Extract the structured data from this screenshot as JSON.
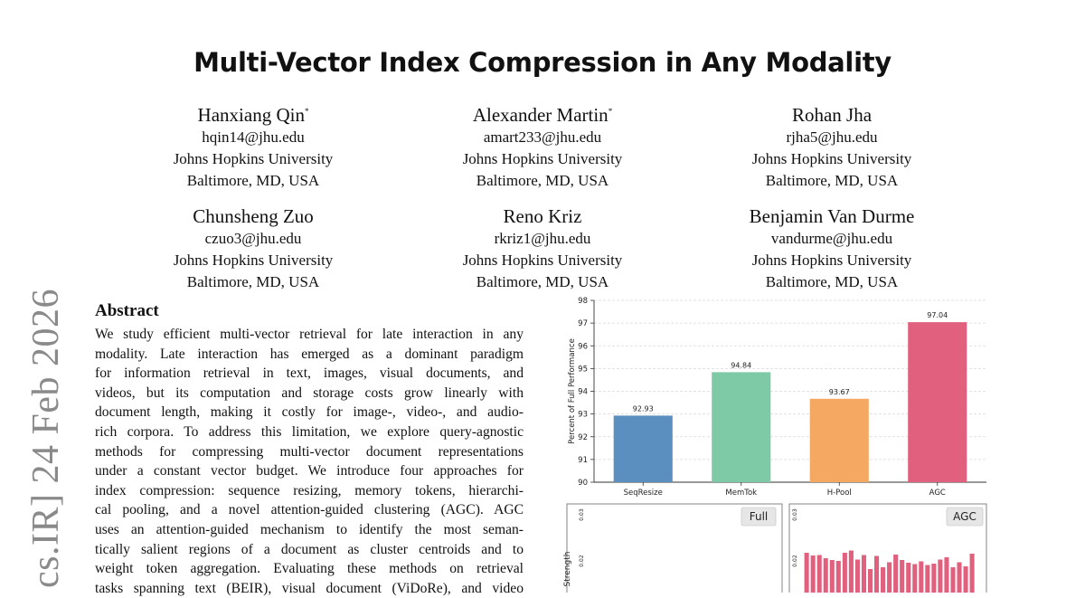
{
  "sidebar": {
    "stamp": "cs.IR]  24 Feb 2026"
  },
  "paper": {
    "title": "Multi-Vector Index Compression in Any Modality"
  },
  "authors": [
    {
      "name": "Hanxiang Qin",
      "mark": "*",
      "email": "hqin14@jhu.edu",
      "affiliation": "Johns Hopkins University",
      "location": "Baltimore, MD, USA"
    },
    {
      "name": "Alexander Martin",
      "mark": "*",
      "email": "amart233@jhu.edu",
      "affiliation": "Johns Hopkins University",
      "location": "Baltimore, MD, USA"
    },
    {
      "name": "Rohan Jha",
      "mark": "",
      "email": "rjha5@jhu.edu",
      "affiliation": "Johns Hopkins University",
      "location": "Baltimore, MD, USA"
    },
    {
      "name": "Chunsheng Zuo",
      "mark": "",
      "email": "czuo3@jhu.edu",
      "affiliation": "Johns Hopkins University",
      "location": "Baltimore, MD, USA"
    },
    {
      "name": "Reno Kriz",
      "mark": "",
      "email": "rkriz1@jhu.edu",
      "affiliation": "Johns Hopkins University",
      "location": "Baltimore, MD, USA"
    },
    {
      "name": "Benjamin Van Durme",
      "mark": "",
      "email": "vandurme@jhu.edu",
      "affiliation": "Johns Hopkins University",
      "location": "Baltimore, MD, USA"
    }
  ],
  "abstract": {
    "heading": "Abstract",
    "lines": [
      "We study efficient multi-vector retrieval for late interaction in any",
      "modality. Late interaction has emerged as a dominant paradigm",
      "for information retrieval in text, images, visual documents, and",
      "videos, but its computation and storage costs grow linearly with",
      "document length, making it costly for image-, video-, and audio-",
      "rich corpora. To address this limitation, we explore query-agnostic",
      "methods for compressing multi-vector document representations",
      "under a constant vector budget. We introduce four approaches for",
      "index compression: sequence resizing, memory tokens, hierarchi-",
      "cal pooling, and a novel attention-guided clustering (AGC). AGC",
      "uses an attention-guided mechanism to identify the most seman-",
      "tically salient regions of a document as cluster centroids and to",
      "weight token aggregation. Evaluating these methods on retrieval",
      "tasks spanning text (BEIR), visual document (ViDoRe), and video"
    ]
  },
  "chart_data": [
    {
      "type": "bar",
      "title": "",
      "xlabel": "",
      "ylabel": "Percent of Full Performance",
      "categories": [
        "SeqResize",
        "MemTok",
        "H-Pool",
        "AGC"
      ],
      "values": [
        92.93,
        94.84,
        93.67,
        97.04
      ],
      "value_labels": [
        "92.93",
        "94.84",
        "93.67",
        "97.04"
      ],
      "colors": [
        "#5a8fc0",
        "#7fcaa6",
        "#f4a862",
        "#e0607e"
      ],
      "ylim": [
        90,
        98
      ],
      "yticks": [
        90,
        91,
        92,
        93,
        94,
        95,
        96,
        97,
        98
      ],
      "grid": true
    },
    {
      "type": "bar",
      "panels": [
        {
          "label": "Full",
          "ylabel": "Strength",
          "yticks": [
            "0.03",
            "0.02"
          ],
          "values": []
        },
        {
          "label": "AGC",
          "yticks": [
            "0.03",
            "0.02"
          ],
          "bar_color": "#e0607e",
          "values": [
            0.0208,
            0.0202,
            0.0203,
            0.0196,
            0.0192,
            0.019,
            0.0208,
            0.0213,
            0.0193,
            0.0203,
            0.0172,
            0.0201,
            0.0176,
            0.0187,
            0.0204,
            0.0192,
            0.0186,
            0.0183,
            0.0189,
            0.0181,
            0.0184,
            0.0193,
            0.0198,
            0.0176,
            0.0187,
            0.0178,
            0.0206
          ]
        }
      ]
    }
  ]
}
